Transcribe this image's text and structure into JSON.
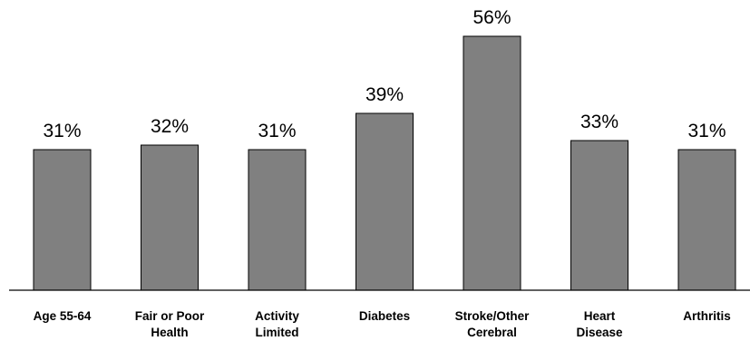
{
  "chart_data": {
    "type": "bar",
    "title": "",
    "xlabel": "",
    "ylabel": "",
    "ylim": [
      0,
      60
    ],
    "grid": false,
    "value_suffix": "%",
    "bar_color": "#808080",
    "categories": [
      [
        "Age 55-64"
      ],
      [
        "Fair or Poor",
        "Health"
      ],
      [
        "Activity",
        "Limited"
      ],
      [
        "Diabetes"
      ],
      [
        "Stroke/Other",
        "Cerebral"
      ],
      [
        "Heart",
        "Disease"
      ],
      [
        "Arthritis"
      ]
    ],
    "values": [
      31,
      32,
      31,
      39,
      56,
      33,
      31
    ],
    "value_labels": [
      "31%",
      "32%",
      "31%",
      "39%",
      "56%",
      "33%",
      "31%"
    ]
  }
}
